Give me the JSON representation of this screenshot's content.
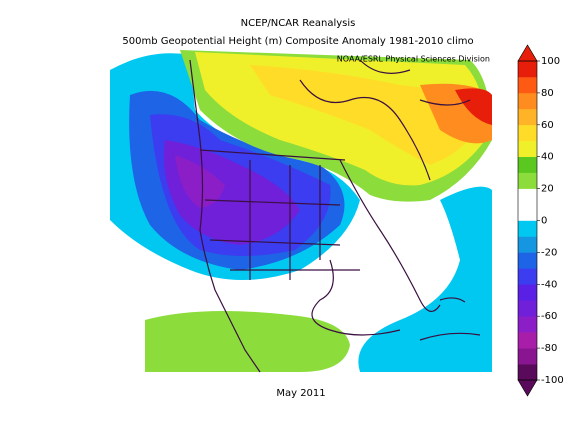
{
  "header": {
    "title": "NCEP/NCAR Reanalysis",
    "subtitle": "500mb Geopotential Height (m) Composite Anomaly 1981-2010 climo",
    "credit": "NOAA/ESRL Physical Sciences Division"
  },
  "footer": {
    "date": "May 2011"
  },
  "colorbar": {
    "range": [
      -100,
      100
    ],
    "ticks": [
      -100,
      -80,
      -60,
      -40,
      -20,
      0,
      20,
      40,
      60,
      80,
      100
    ],
    "colors": [
      "#5a0a5a",
      "#8a1590",
      "#a81ea8",
      "#8c1ec8",
      "#7020d8",
      "#5a20e6",
      "#3c3cf0",
      "#1e64e6",
      "#1496e0",
      "#00c8f0",
      "#ffffff",
      "#ffffff",
      "#8cdc3c",
      "#5ac81e",
      "#f0f02a",
      "#ffdc28",
      "#ffb428",
      "#ff8c1e",
      "#ff5a14",
      "#e61e0a"
    ]
  }
}
